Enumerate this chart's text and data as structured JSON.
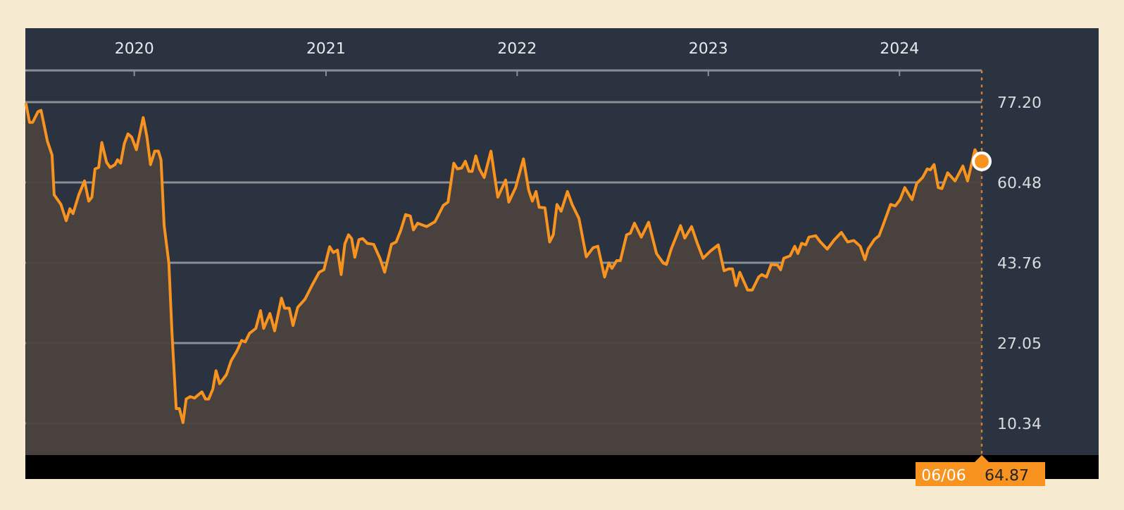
{
  "chart_data": {
    "type": "area",
    "x": [
      "2019-06-08",
      "2019-06-15",
      "2019-06-21",
      "2019-07-01",
      "2019-07-07",
      "2019-07-19",
      "2019-07-28",
      "2019-08-01",
      "2019-08-14",
      "2019-08-24",
      "2019-08-31",
      "2019-09-06",
      "2019-09-17",
      "2019-09-28",
      "2019-10-06",
      "2019-10-12",
      "2019-10-18",
      "2019-10-25",
      "2019-10-31",
      "2019-11-09",
      "2019-11-16",
      "2019-11-25",
      "2019-11-30",
      "2019-12-06",
      "2019-12-13",
      "2019-12-20",
      "2019-12-27",
      "2020-01-05",
      "2020-01-18",
      "2020-01-25",
      "2020-02-01",
      "2020-02-09",
      "2020-02-16",
      "2020-02-21",
      "2020-02-27",
      "2020-03-07",
      "2020-03-13",
      "2020-03-21",
      "2020-03-27",
      "2020-04-03",
      "2020-04-09",
      "2020-04-17",
      "2020-04-25",
      "2020-05-09",
      "2020-05-16",
      "2020-05-22",
      "2020-05-30",
      "2020-06-05",
      "2020-06-12",
      "2020-06-25",
      "2020-07-04",
      "2020-07-15",
      "2020-07-24",
      "2020-07-31",
      "2020-08-08",
      "2020-08-20",
      "2020-08-29",
      "2020-09-04",
      "2020-09-16",
      "2020-09-25",
      "2020-10-08",
      "2020-10-14",
      "2020-10-23",
      "2020-10-30",
      "2020-11-08",
      "2020-11-22",
      "2020-12-05",
      "2020-12-19",
      "2020-12-28",
      "2021-01-08",
      "2021-01-15",
      "2021-01-23",
      "2021-01-30",
      "2021-02-06",
      "2021-02-13",
      "2021-02-19",
      "2021-02-25",
      "2021-03-05",
      "2021-03-12",
      "2021-03-21",
      "2021-04-02",
      "2021-04-14",
      "2021-04-23",
      "2021-05-06",
      "2021-05-15",
      "2021-05-24",
      "2021-06-02",
      "2021-06-11",
      "2021-06-17",
      "2021-06-25",
      "2021-07-12",
      "2021-07-28",
      "2021-08-13",
      "2021-08-22",
      "2021-09-02",
      "2021-09-09",
      "2021-09-17",
      "2021-09-24",
      "2021-10-01",
      "2021-10-07",
      "2021-10-14",
      "2021-10-21",
      "2021-10-30",
      "2021-11-12",
      "2021-11-25",
      "2021-12-10",
      "2021-12-16",
      "2021-12-29",
      "2022-01-13",
      "2022-01-23",
      "2022-01-30",
      "2022-02-06",
      "2022-02-12",
      "2022-02-23",
      "2022-03-04",
      "2022-03-11",
      "2022-03-18",
      "2022-03-26",
      "2022-04-07",
      "2022-04-16",
      "2022-04-29",
      "2022-05-13",
      "2022-05-26",
      "2022-06-04",
      "2022-06-17",
      "2022-06-25",
      "2022-07-01",
      "2022-07-10",
      "2022-07-17",
      "2022-07-29",
      "2022-08-05",
      "2022-08-13",
      "2022-08-26",
      "2022-09-09",
      "2022-09-24",
      "2022-10-07",
      "2022-10-13",
      "2022-10-22",
      "2022-11-09",
      "2022-11-17",
      "2022-11-30",
      "2022-12-11",
      "2022-12-22",
      "2023-01-05",
      "2023-01-20",
      "2023-01-31",
      "2023-02-09",
      "2023-02-16",
      "2023-02-23",
      "2023-03-02",
      "2023-03-17",
      "2023-03-26",
      "2023-04-07",
      "2023-04-13",
      "2023-04-22",
      "2023-05-01",
      "2023-05-13",
      "2023-05-19",
      "2023-05-25",
      "2023-06-06",
      "2023-06-15",
      "2023-06-21",
      "2023-06-28",
      "2023-07-06",
      "2023-07-12",
      "2023-07-25",
      "2023-08-03",
      "2023-08-16",
      "2023-08-30",
      "2023-09-12",
      "2023-09-24",
      "2023-10-06",
      "2023-10-18",
      "2023-10-27",
      "2023-11-02",
      "2023-11-14",
      "2023-11-23",
      "2023-12-02",
      "2023-12-15",
      "2023-12-24",
      "2024-01-02",
      "2024-01-11",
      "2024-01-25",
      "2024-02-03",
      "2024-02-14",
      "2024-02-23",
      "2024-02-29",
      "2024-03-07",
      "2024-03-15",
      "2024-03-22",
      "2024-04-02",
      "2024-04-16",
      "2024-05-01",
      "2024-05-10",
      "2024-05-24",
      "2024-06-06"
    ],
    "series": [
      {
        "color": "#f7931e",
        "values": [
          77.0,
          73.0,
          73.0,
          75.2,
          75.5,
          69.1,
          66.2,
          57.9,
          55.9,
          52.5,
          55.0,
          54.0,
          57.9,
          60.8,
          56.6,
          57.4,
          63.3,
          63.6,
          68.8,
          64.7,
          63.6,
          64.2,
          65.2,
          64.5,
          68.6,
          70.6,
          69.9,
          67.3,
          74.0,
          70.1,
          64.2,
          67.0,
          67.0,
          65.2,
          51.5,
          43.7,
          29.1,
          13.4,
          13.4,
          10.5,
          15.4,
          15.9,
          15.6,
          16.9,
          15.4,
          15.4,
          17.5,
          21.3,
          18.6,
          20.5,
          23.4,
          25.4,
          27.6,
          27.3,
          29.1,
          30.1,
          33.8,
          30.1,
          33.2,
          29.6,
          36.4,
          34.3,
          34.3,
          30.7,
          34.5,
          36.2,
          39.0,
          41.8,
          42.3,
          47.1,
          45.9,
          46.4,
          41.3,
          47.7,
          49.6,
          48.8,
          44.9,
          48.6,
          48.8,
          47.8,
          47.6,
          44.7,
          41.8,
          47.6,
          48.1,
          50.6,
          53.8,
          53.5,
          50.6,
          52.0,
          51.3,
          52.3,
          55.7,
          56.4,
          64.5,
          63.3,
          63.5,
          64.9,
          62.8,
          62.8,
          66.0,
          63.3,
          61.5,
          67.0,
          57.4,
          61.0,
          56.4,
          59.4,
          65.4,
          58.9,
          56.6,
          58.6,
          55.3,
          55.2,
          48.1,
          49.6,
          55.9,
          54.5,
          58.6,
          55.9,
          53.0,
          45.0,
          46.9,
          47.2,
          40.8,
          43.7,
          42.6,
          44.2,
          44.2,
          49.6,
          49.9,
          52.0,
          49.1,
          52.2,
          45.7,
          43.7,
          43.4,
          46.6,
          51.5,
          48.9,
          51.3,
          47.8,
          44.7,
          46.2,
          47.5,
          42.1,
          42.5,
          42.5,
          39.0,
          41.8,
          38.1,
          38.1,
          40.8,
          41.3,
          40.8,
          43.4,
          43.3,
          42.3,
          44.7,
          45.2,
          47.2,
          45.7,
          47.8,
          47.5,
          49.1,
          49.4,
          48.1,
          46.6,
          48.6,
          50.1,
          48.1,
          48.4,
          47.2,
          44.4,
          46.6,
          48.6,
          49.4,
          52.0,
          55.9,
          55.6,
          56.9,
          59.4,
          56.9,
          60.3,
          61.5,
          63.3,
          63.1,
          64.2,
          59.4,
          59.2,
          62.5,
          60.8,
          63.9,
          60.8,
          67.3,
          64.87
        ]
      }
    ],
    "xlim": [
      "2019-06-07",
      "2024-06-06"
    ],
    "xticks": [
      {
        "value": "2020-01-01",
        "label": "2020"
      },
      {
        "value": "2021-01-01",
        "label": "2021"
      },
      {
        "value": "2022-01-01",
        "label": "2022"
      },
      {
        "value": "2023-01-01",
        "label": "2023"
      },
      {
        "value": "2024-01-01",
        "label": "2024"
      }
    ],
    "ylim": [
      3.74,
      83.8
    ],
    "yticks": [
      10.34,
      27.05,
      43.76,
      60.48,
      {
        "value": 77.2,
        "label": "77.20"
      }
    ],
    "grid": "y",
    "ref_lines": [
      {
        "axis": "x",
        "value": "2024-06-06",
        "label": null,
        "color": "#c8823c",
        "line_style": "dotted"
      }
    ],
    "annotations": [
      "06/06",
      "64.87"
    ]
  }
}
